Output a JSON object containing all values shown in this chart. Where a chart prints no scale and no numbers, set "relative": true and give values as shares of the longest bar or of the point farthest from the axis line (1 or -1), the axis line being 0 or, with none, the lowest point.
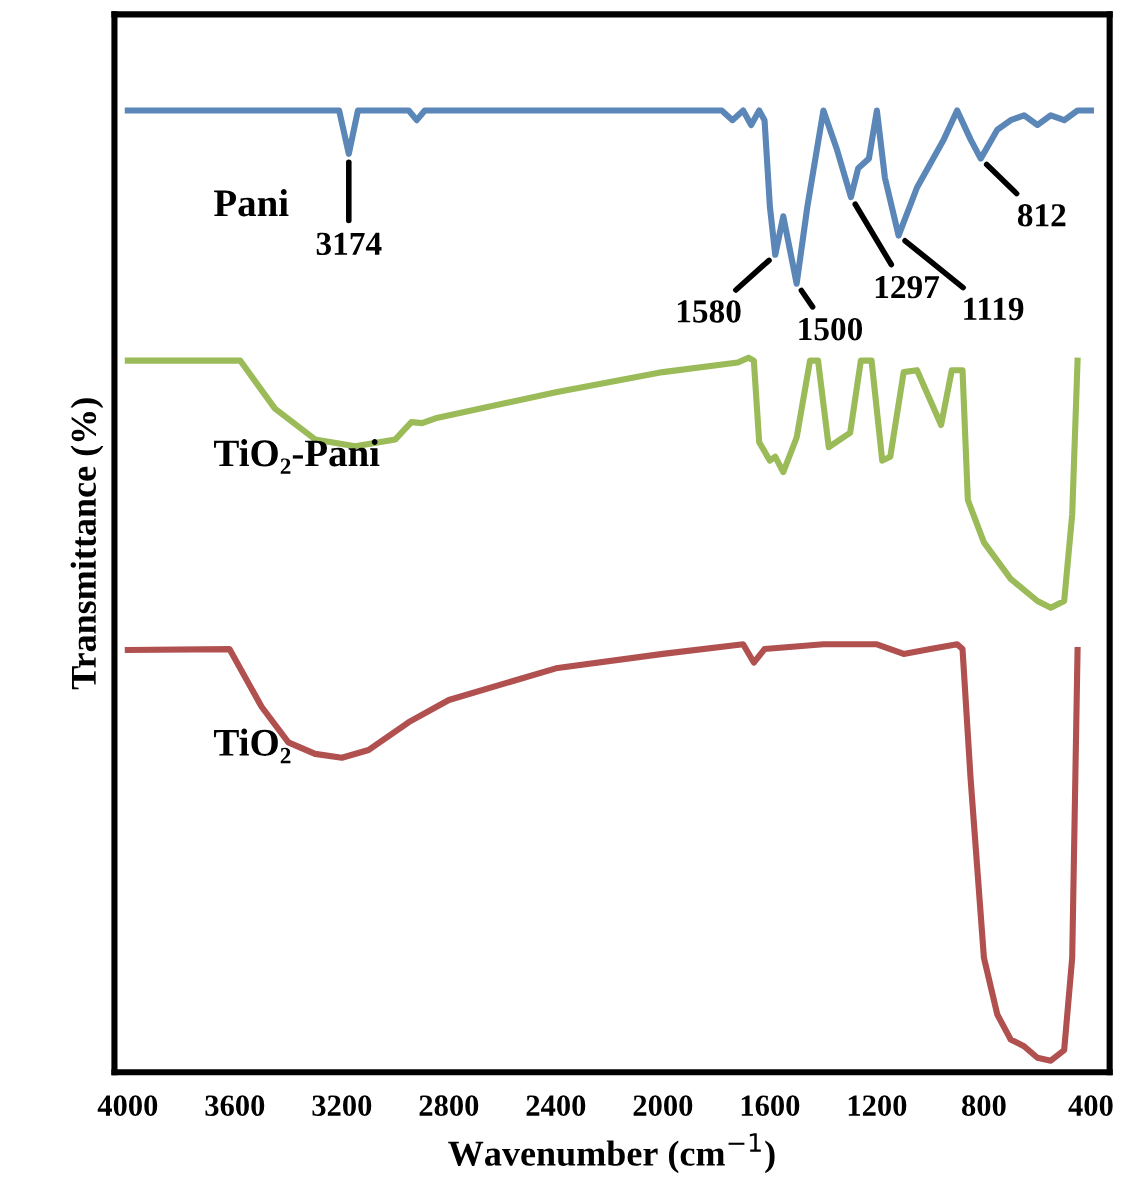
{
  "chart_data": {
    "type": "line",
    "relative": true,
    "xlabel": "Wavenumber (cm$^{−1}$)",
    "ylabel": "Transmittance (%)",
    "xlim": [
      4050,
      330
    ],
    "xticks": [
      4000,
      3600,
      3200,
      2800,
      2400,
      2000,
      1600,
      1200,
      800,
      400
    ],
    "grid": false,
    "legend": false,
    "marker": "none",
    "line_style": "solid",
    "series": [
      {
        "name": "Pani",
        "color": "#5b86b8",
        "x": [
          4000,
          3300,
          3210,
          3174,
          3140,
          2950,
          2920,
          2890,
          1780,
          1740,
          1700,
          1670,
          1640,
          1620,
          1600,
          1580,
          1550,
          1500,
          1460,
          1400,
          1350,
          1297,
          1270,
          1230,
          1200,
          1170,
          1119,
          1050,
          950,
          900,
          850,
          812,
          750,
          700,
          650,
          600,
          550,
          500,
          450,
          400
        ],
        "values": [
          1.0,
          1.0,
          1.0,
          0.955,
          1.0,
          1.0,
          0.99,
          1.0,
          1.0,
          0.99,
          1.0,
          0.985,
          1.0,
          0.99,
          0.9,
          0.85,
          0.89,
          0.82,
          0.9,
          1.0,
          0.96,
          0.91,
          0.94,
          0.95,
          1.0,
          0.93,
          0.87,
          0.92,
          0.97,
          1.0,
          0.97,
          0.95,
          0.98,
          0.99,
          0.995,
          0.985,
          0.995,
          0.99,
          1.0,
          1.0
        ]
      },
      {
        "name": "TiO₂-Pani",
        "color": "#9bbb59",
        "x": [
          4000,
          3580,
          3450,
          3300,
          3150,
          3000,
          2940,
          2900,
          2850,
          2400,
          2000,
          1720,
          1680,
          1660,
          1640,
          1600,
          1580,
          1550,
          1500,
          1450,
          1420,
          1380,
          1300,
          1260,
          1220,
          1180,
          1150,
          1100,
          1050,
          960,
          920,
          880,
          860,
          800,
          700,
          600,
          550,
          500,
          470,
          450
        ],
        "values": [
          0.74,
          0.74,
          0.69,
          0.658,
          0.651,
          0.658,
          0.676,
          0.675,
          0.68,
          0.707,
          0.728,
          0.738,
          0.743,
          0.74,
          0.655,
          0.636,
          0.64,
          0.624,
          0.66,
          0.74,
          0.74,
          0.65,
          0.665,
          0.74,
          0.74,
          0.636,
          0.64,
          0.728,
          0.73,
          0.673,
          0.73,
          0.73,
          0.595,
          0.551,
          0.513,
          0.49,
          0.483,
          0.49,
          0.58,
          0.74
        ]
      },
      {
        "name": "TiO₂",
        "color": "#b0504f",
        "x": [
          4000,
          3620,
          3500,
          3400,
          3300,
          3200,
          3100,
          2950,
          2800,
          2400,
          2000,
          1700,
          1660,
          1620,
          1400,
          1200,
          1100,
          1000,
          900,
          880,
          850,
          800,
          750,
          700,
          650,
          600,
          550,
          500,
          470,
          450
        ],
        "values": [
          0.439,
          0.44,
          0.38,
          0.343,
          0.331,
          0.327,
          0.335,
          0.364,
          0.387,
          0.42,
          0.435,
          0.445,
          0.426,
          0.44,
          0.445,
          0.445,
          0.435,
          0.44,
          0.445,
          0.44,
          0.306,
          0.119,
          0.06,
          0.034,
          0.027,
          0.015,
          0.012,
          0.023,
          0.119,
          0.439
        ]
      }
    ],
    "annotations": [
      {
        "text": "3174",
        "x": 3174,
        "y": 0.955
      },
      {
        "text": "1580",
        "x": 1580,
        "y": 0.85
      },
      {
        "text": "1500",
        "x": 1500,
        "y": 0.82
      },
      {
        "text": "1297",
        "x": 1297,
        "y": 0.91
      },
      {
        "text": "1119",
        "x": 1119,
        "y": 0.87
      },
      {
        "text": "812",
        "x": 812,
        "y": 0.95
      }
    ]
  }
}
